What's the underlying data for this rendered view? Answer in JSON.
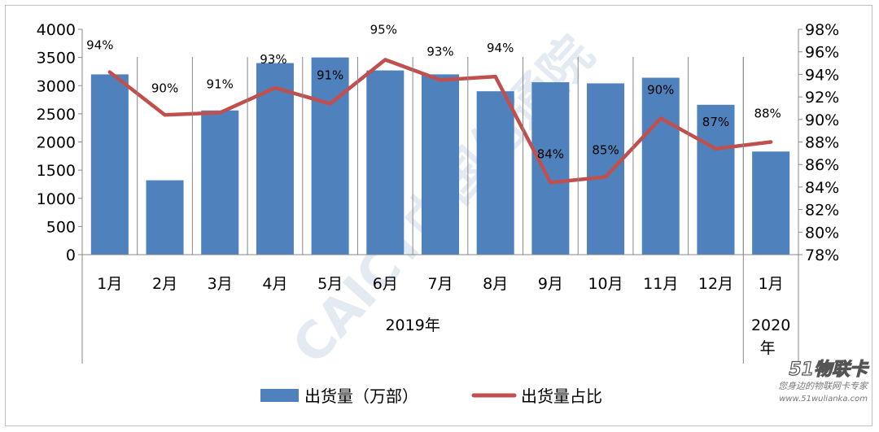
{
  "chart_data": {
    "type": "bar+line",
    "categories": [
      "1月",
      "2月",
      "3月",
      "4月",
      "5月",
      "6月",
      "7月",
      "8月",
      "9月",
      "10月",
      "11月",
      "12月",
      "1月"
    ],
    "category_groups": [
      {
        "label": "2019年",
        "from": 0,
        "to": 11
      },
      {
        "label": "2020年",
        "from": 12,
        "to": 12
      }
    ],
    "series": [
      {
        "name": "出货量（万部）",
        "type": "bar",
        "axis": "left",
        "color": "#4f81bd",
        "values": [
          3200,
          1320,
          2560,
          3400,
          3500,
          3270,
          3200,
          2900,
          3060,
          3040,
          3140,
          2660,
          1830
        ]
      },
      {
        "name": "出货量占比",
        "type": "line",
        "axis": "right",
        "color": "#c0504d",
        "values": [
          94.2,
          90.4,
          90.6,
          92.8,
          91.4,
          95.3,
          93.5,
          93.8,
          84.4,
          84.9,
          90.1,
          87.4,
          88.0
        ],
        "labels": [
          "94%",
          "90%",
          "91%",
          "93%",
          "91%",
          "95%",
          "93%",
          "94%",
          "84%",
          "85%",
          "90%",
          "87%",
          "88%"
        ]
      }
    ],
    "y_left": {
      "min": 0,
      "max": 4000,
      "ticks": [
        "0",
        "500",
        "1000",
        "1500",
        "2000",
        "2500",
        "3000",
        "3500",
        "4000"
      ]
    },
    "y_right": {
      "min": 78,
      "max": 98,
      "ticks": [
        "78%",
        "80%",
        "82%",
        "84%",
        "86%",
        "88%",
        "90%",
        "92%",
        "94%",
        "96%",
        "98%"
      ]
    },
    "legend_position": "bottom",
    "grid": false
  },
  "watermark": {
    "text": "CAICT中国信通院",
    "color": "#d9e2ee"
  },
  "logo": {
    "name": "51物联卡",
    "tagline": "您身边的物联网卡专家",
    "url": "www.51wulianka.com"
  }
}
